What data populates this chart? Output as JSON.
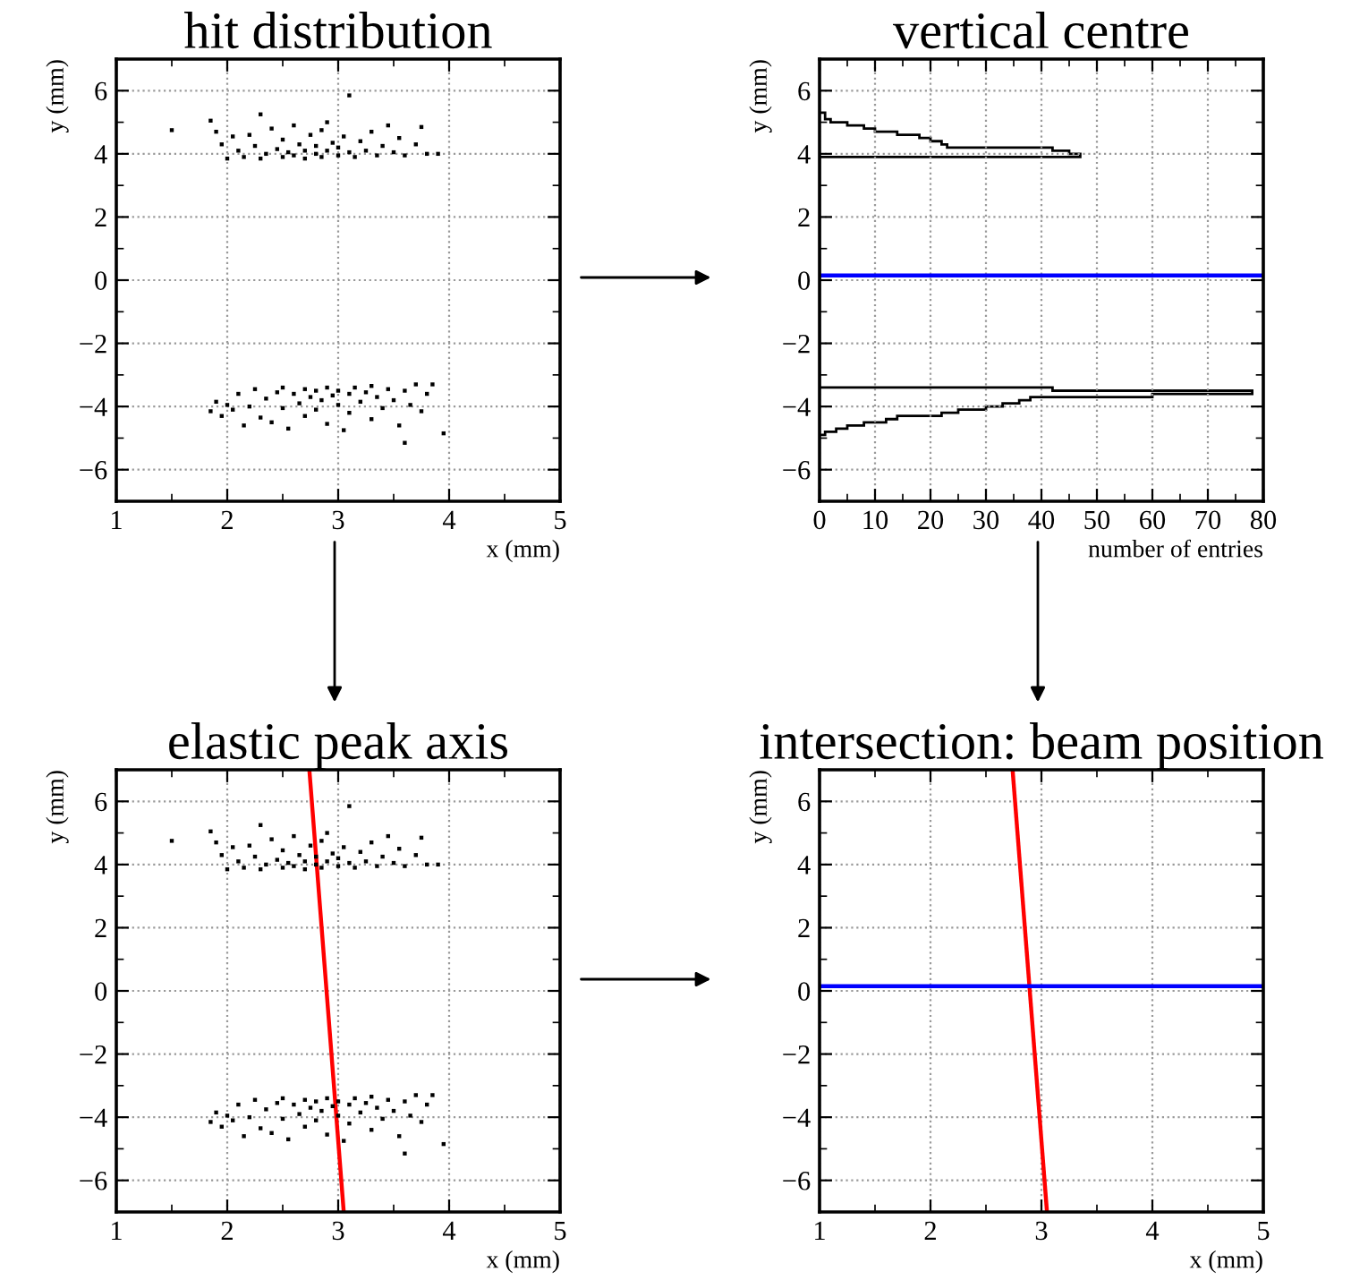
{
  "chart_data": [
    {
      "type": "scatter",
      "title": "hit distribution",
      "xlabel": "x (mm)",
      "ylabel": "y (mm)",
      "xlim": [
        1,
        5
      ],
      "ylim": [
        -7,
        7
      ],
      "xticks": [
        1,
        2,
        3,
        4,
        5
      ],
      "yticks": [
        {
          "value": -6,
          "label": "−6"
        },
        {
          "value": -4,
          "label": "−4"
        },
        {
          "value": -2,
          "label": "−2"
        },
        0,
        2,
        4,
        6
      ],
      "grid": true,
      "series": [
        {
          "type": "scatter",
          "marker": "square",
          "color": "#000000",
          "x": [
            1.5,
            1.85,
            1.9,
            1.95,
            2.0,
            2.05,
            2.1,
            2.15,
            2.2,
            2.25,
            2.3,
            2.3,
            2.35,
            2.4,
            2.45,
            2.5,
            2.5,
            2.55,
            2.6,
            2.6,
            2.65,
            2.7,
            2.7,
            2.75,
            2.8,
            2.8,
            2.85,
            2.85,
            2.9,
            2.9,
            2.95,
            3.0,
            3.0,
            3.05,
            3.1,
            3.1,
            3.15,
            3.2,
            3.25,
            3.3,
            3.35,
            3.4,
            3.45,
            3.5,
            3.55,
            3.6,
            3.7,
            3.75,
            3.8,
            3.9,
            1.85,
            1.9,
            1.95,
            2.0,
            2.05,
            2.1,
            2.15,
            2.2,
            2.25,
            2.3,
            2.35,
            2.4,
            2.45,
            2.5,
            2.5,
            2.55,
            2.6,
            2.65,
            2.7,
            2.7,
            2.75,
            2.8,
            2.8,
            2.85,
            2.9,
            2.9,
            2.95,
            3.0,
            3.0,
            3.05,
            3.1,
            3.1,
            3.15,
            3.2,
            3.25,
            3.3,
            3.3,
            3.35,
            3.4,
            3.45,
            3.5,
            3.55,
            3.6,
            3.6,
            3.65,
            3.7,
            3.75,
            3.8,
            3.85,
            3.95
          ],
          "values": [
            4.75,
            5.05,
            4.7,
            4.3,
            3.85,
            4.55,
            4.1,
            3.9,
            4.6,
            4.25,
            5.25,
            3.85,
            4.0,
            4.8,
            4.15,
            3.9,
            4.45,
            4.05,
            4.9,
            3.95,
            4.3,
            4.1,
            3.85,
            4.6,
            4.0,
            4.25,
            3.9,
            4.75,
            4.1,
            5.0,
            4.35,
            3.95,
            4.2,
            4.55,
            4.05,
            5.85,
            3.9,
            4.4,
            4.1,
            4.7,
            3.95,
            4.25,
            4.9,
            4.05,
            4.5,
            3.95,
            4.3,
            4.85,
            4.0,
            4.0,
            -4.15,
            -3.85,
            -4.3,
            -3.95,
            -4.1,
            -3.6,
            -4.6,
            -4.0,
            -3.45,
            -4.35,
            -3.75,
            -4.5,
            -3.55,
            -4.05,
            -3.4,
            -4.7,
            -3.6,
            -3.9,
            -3.45,
            -4.3,
            -3.7,
            -3.5,
            -4.1,
            -3.8,
            -3.4,
            -4.55,
            -3.65,
            -3.95,
            -3.5,
            -4.75,
            -3.6,
            -4.2,
            -3.4,
            -3.85,
            -3.55,
            -4.4,
            -3.35,
            -3.7,
            -4.05,
            -3.45,
            -3.8,
            -4.6,
            -3.5,
            -5.15,
            -3.95,
            -3.3,
            -4.15,
            -3.6,
            -3.3,
            -4.85
          ]
        }
      ]
    },
    {
      "type": "histogram",
      "orientation": "horizontal",
      "title": "vertical centre",
      "xlabel": "number of entries",
      "ylabel": "y (mm)",
      "xlim": [
        0,
        80
      ],
      "ylim": [
        -7,
        7
      ],
      "xticks": [
        0,
        10,
        20,
        30,
        40,
        50,
        60,
        70,
        80
      ],
      "yticks": [
        {
          "value": -6,
          "label": "−6"
        },
        {
          "value": -4,
          "label": "−4"
        },
        {
          "value": -2,
          "label": "−2"
        },
        0,
        2,
        4,
        6
      ],
      "grid": true,
      "bins": [
        -4.9,
        -4.8,
        -4.7,
        -4.6,
        -4.5,
        -4.4,
        -4.3,
        -4.2,
        -4.1,
        -4.0,
        -3.9,
        -3.8,
        -3.7,
        -3.6,
        -3.5,
        -3.4,
        3.9,
        4.0,
        4.1,
        4.2,
        4.3,
        4.4,
        4.5,
        4.6,
        4.7,
        4.8,
        4.9,
        5.0,
        5.1,
        5.2,
        5.3
      ],
      "values": [
        1,
        3,
        5,
        8,
        12,
        14,
        22,
        25,
        30,
        33,
        36,
        38,
        60,
        78,
        42,
        0,
        47,
        45,
        42,
        23,
        22,
        20,
        18,
        14,
        10,
        8,
        5,
        2,
        1,
        1
      ],
      "color": "#000000",
      "ref_lines": [
        {
          "axis": "y",
          "value": 0.15,
          "color": "#0000ff"
        }
      ]
    },
    {
      "type": "scatter",
      "title": "elastic peak axis",
      "xlabel": "x (mm)",
      "ylabel": "y (mm)",
      "xlim": [
        1,
        5
      ],
      "ylim": [
        -7,
        7
      ],
      "xticks": [
        1,
        2,
        3,
        4,
        5
      ],
      "yticks": [
        {
          "value": -6,
          "label": "−6"
        },
        {
          "value": -4,
          "label": "−4"
        },
        {
          "value": -2,
          "label": "−2"
        },
        0,
        2,
        4,
        6
      ],
      "grid": true,
      "series": [
        {
          "type": "scatter",
          "marker": "square",
          "color": "#000000",
          "x": [
            1.5,
            1.85,
            1.9,
            1.95,
            2.0,
            2.05,
            2.1,
            2.15,
            2.2,
            2.25,
            2.3,
            2.3,
            2.35,
            2.4,
            2.45,
            2.5,
            2.5,
            2.55,
            2.6,
            2.6,
            2.65,
            2.7,
            2.7,
            2.75,
            2.8,
            2.8,
            2.85,
            2.85,
            2.9,
            2.9,
            2.95,
            3.0,
            3.0,
            3.05,
            3.1,
            3.1,
            3.15,
            3.2,
            3.25,
            3.3,
            3.35,
            3.4,
            3.45,
            3.5,
            3.55,
            3.6,
            3.7,
            3.75,
            3.8,
            3.9,
            1.85,
            1.9,
            1.95,
            2.0,
            2.05,
            2.1,
            2.15,
            2.2,
            2.25,
            2.3,
            2.35,
            2.4,
            2.45,
            2.5,
            2.5,
            2.55,
            2.6,
            2.65,
            2.7,
            2.7,
            2.75,
            2.8,
            2.8,
            2.85,
            2.9,
            2.9,
            2.95,
            3.0,
            3.0,
            3.05,
            3.1,
            3.1,
            3.15,
            3.2,
            3.25,
            3.3,
            3.3,
            3.35,
            3.4,
            3.45,
            3.5,
            3.55,
            3.6,
            3.6,
            3.65,
            3.7,
            3.75,
            3.8,
            3.85,
            3.95
          ],
          "values": [
            4.75,
            5.05,
            4.7,
            4.3,
            3.85,
            4.55,
            4.1,
            3.9,
            4.6,
            4.25,
            5.25,
            3.85,
            4.0,
            4.8,
            4.15,
            3.9,
            4.45,
            4.05,
            4.9,
            3.95,
            4.3,
            4.1,
            3.85,
            4.6,
            4.0,
            4.25,
            3.9,
            4.75,
            4.1,
            5.0,
            4.35,
            3.95,
            4.2,
            4.55,
            4.05,
            5.85,
            3.9,
            4.4,
            4.1,
            4.7,
            3.95,
            4.25,
            4.9,
            4.05,
            4.5,
            3.95,
            4.3,
            4.85,
            4.0,
            4.0,
            -4.15,
            -3.85,
            -4.3,
            -3.95,
            -4.1,
            -3.6,
            -4.6,
            -4.0,
            -3.45,
            -4.35,
            -3.75,
            -4.5,
            -3.55,
            -4.05,
            -3.4,
            -4.7,
            -3.6,
            -3.9,
            -3.45,
            -4.3,
            -3.7,
            -3.5,
            -4.1,
            -3.8,
            -3.4,
            -4.55,
            -3.65,
            -3.95,
            -3.5,
            -4.75,
            -3.6,
            -4.2,
            -3.4,
            -3.85,
            -3.55,
            -4.4,
            -3.35,
            -3.7,
            -4.05,
            -3.45,
            -3.8,
            -4.6,
            -3.5,
            -5.15,
            -3.95,
            -3.3,
            -4.15,
            -3.6,
            -3.3,
            -4.85
          ]
        },
        {
          "type": "line",
          "color": "#ff0000",
          "x": [
            2.74,
            3.05
          ],
          "values": [
            7,
            -7
          ]
        }
      ]
    },
    {
      "type": "line",
      "title": "intersection: beam position",
      "xlabel": "x (mm)",
      "ylabel": "y (mm)",
      "xlim": [
        1,
        5
      ],
      "ylim": [
        -7,
        7
      ],
      "xticks": [
        1,
        2,
        3,
        4,
        5
      ],
      "yticks": [
        {
          "value": -6,
          "label": "−6"
        },
        {
          "value": -4,
          "label": "−4"
        },
        {
          "value": -2,
          "label": "−2"
        },
        0,
        2,
        4,
        6
      ],
      "grid": true,
      "series": [
        {
          "type": "line",
          "color": "#ff0000",
          "x": [
            2.74,
            3.05
          ],
          "values": [
            7,
            -7
          ]
        }
      ],
      "ref_lines": [
        {
          "axis": "y",
          "value": 0.15,
          "color": "#0000ff"
        }
      ]
    }
  ]
}
